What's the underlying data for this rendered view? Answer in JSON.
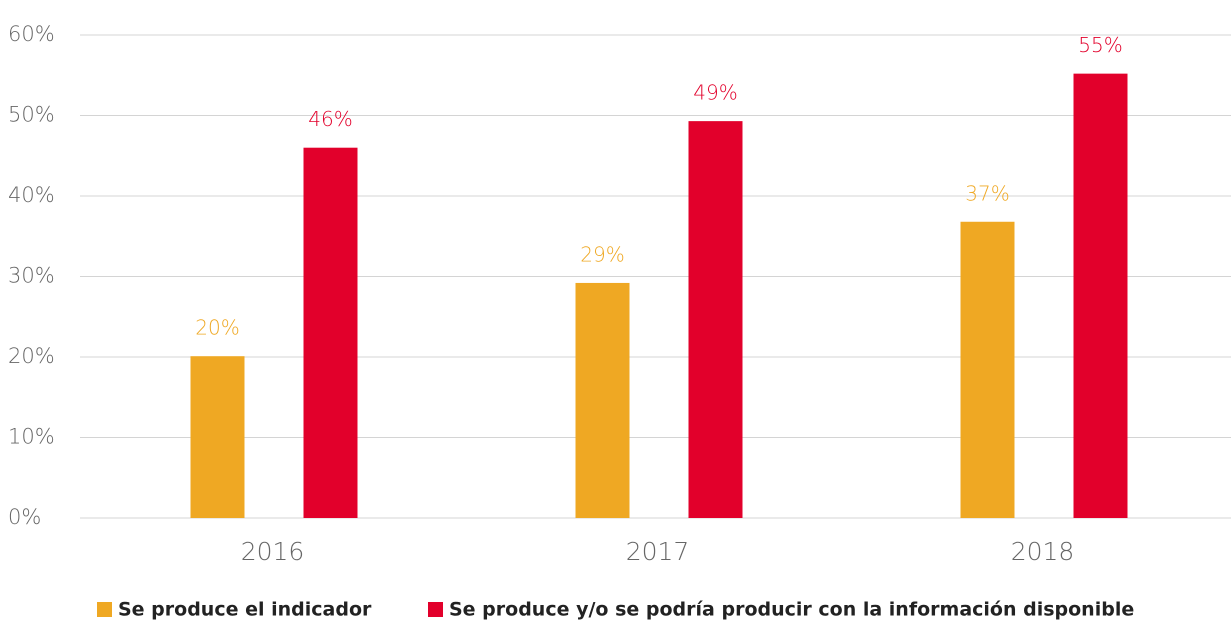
{
  "chart_data": {
    "type": "bar",
    "categories": [
      "2016",
      "2017",
      "2018"
    ],
    "series": [
      {
        "name": "Se produce el indicador",
        "color": "#efa823",
        "values": [
          20.1,
          29.2,
          36.8
        ],
        "value_labels": [
          "20%",
          "29%",
          "37%"
        ]
      },
      {
        "name": "Se produce y/o se podría producir con la información disponible",
        "color": "#e2002b",
        "values": [
          46,
          49.3,
          55.2
        ],
        "value_labels": [
          "46%",
          "49%",
          "55%"
        ]
      }
    ],
    "ylim": [
      0,
      60
    ],
    "yticks": [
      {
        "value": 0,
        "label": "0%"
      },
      {
        "value": 10,
        "label": "10%"
      },
      {
        "value": 20,
        "label": "20%"
      },
      {
        "value": 30,
        "label": "30%"
      },
      {
        "value": 40,
        "label": "40%"
      },
      {
        "value": 50,
        "label": "50%"
      },
      {
        "value": 60,
        "label": "60%"
      }
    ],
    "grid": true
  }
}
